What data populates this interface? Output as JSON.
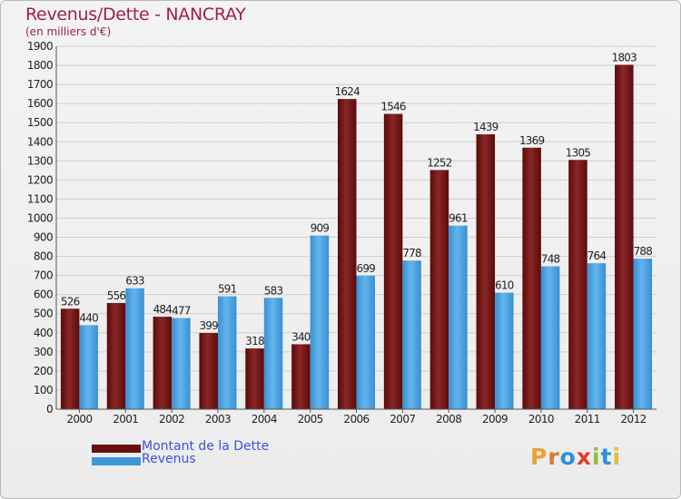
{
  "title": "Revenus/Dette - NANCRAY",
  "unit_label": "(en milliers d'€)",
  "logo": {
    "text": "Proxiti",
    "letter_colors": [
      "#e9a13a",
      "#d97b2c",
      "#2e8fd8",
      "#e0402e",
      "#8fbf3a",
      "#2e8fd8",
      "#d9c23a"
    ]
  },
  "colors": {
    "dette": "#6a0d0d",
    "dette_light": "#8e2a2a",
    "revenus": "#3f97d8",
    "revenus_light": "#6cbff0",
    "grid": "#cfcfcf",
    "axis_text": "#222222",
    "legend_text": "#3a55d6"
  },
  "legend": [
    {
      "label": "Montant de la Dette",
      "color": "#6a0d0d"
    },
    {
      "label": "Revenus",
      "color": "#3f97d8"
    }
  ],
  "chart_data": {
    "type": "bar",
    "title": "Revenus/Dette - NANCRAY",
    "ylabel": "(en milliers d'€)",
    "xlabel": "",
    "categories": [
      "2000",
      "2001",
      "2002",
      "2003",
      "2004",
      "2005",
      "2006",
      "2007",
      "2008",
      "2009",
      "2010",
      "2011",
      "2012"
    ],
    "series": [
      {
        "name": "Montant de la Dette",
        "values": [
          526,
          556,
          484,
          399,
          318,
          340,
          1624,
          1546,
          1252,
          1439,
          1369,
          1305,
          1803
        ]
      },
      {
        "name": "Revenus",
        "values": [
          440,
          633,
          477,
          591,
          583,
          909,
          699,
          778,
          961,
          610,
          748,
          764,
          788
        ]
      }
    ],
    "ylim": [
      0,
      1900
    ],
    "yticks": [
      0,
      100,
      200,
      300,
      400,
      500,
      600,
      700,
      800,
      900,
      1000,
      1100,
      1200,
      1300,
      1400,
      1500,
      1600,
      1700,
      1800,
      1900
    ],
    "grid": true,
    "legend_position": "bottom-left"
  }
}
